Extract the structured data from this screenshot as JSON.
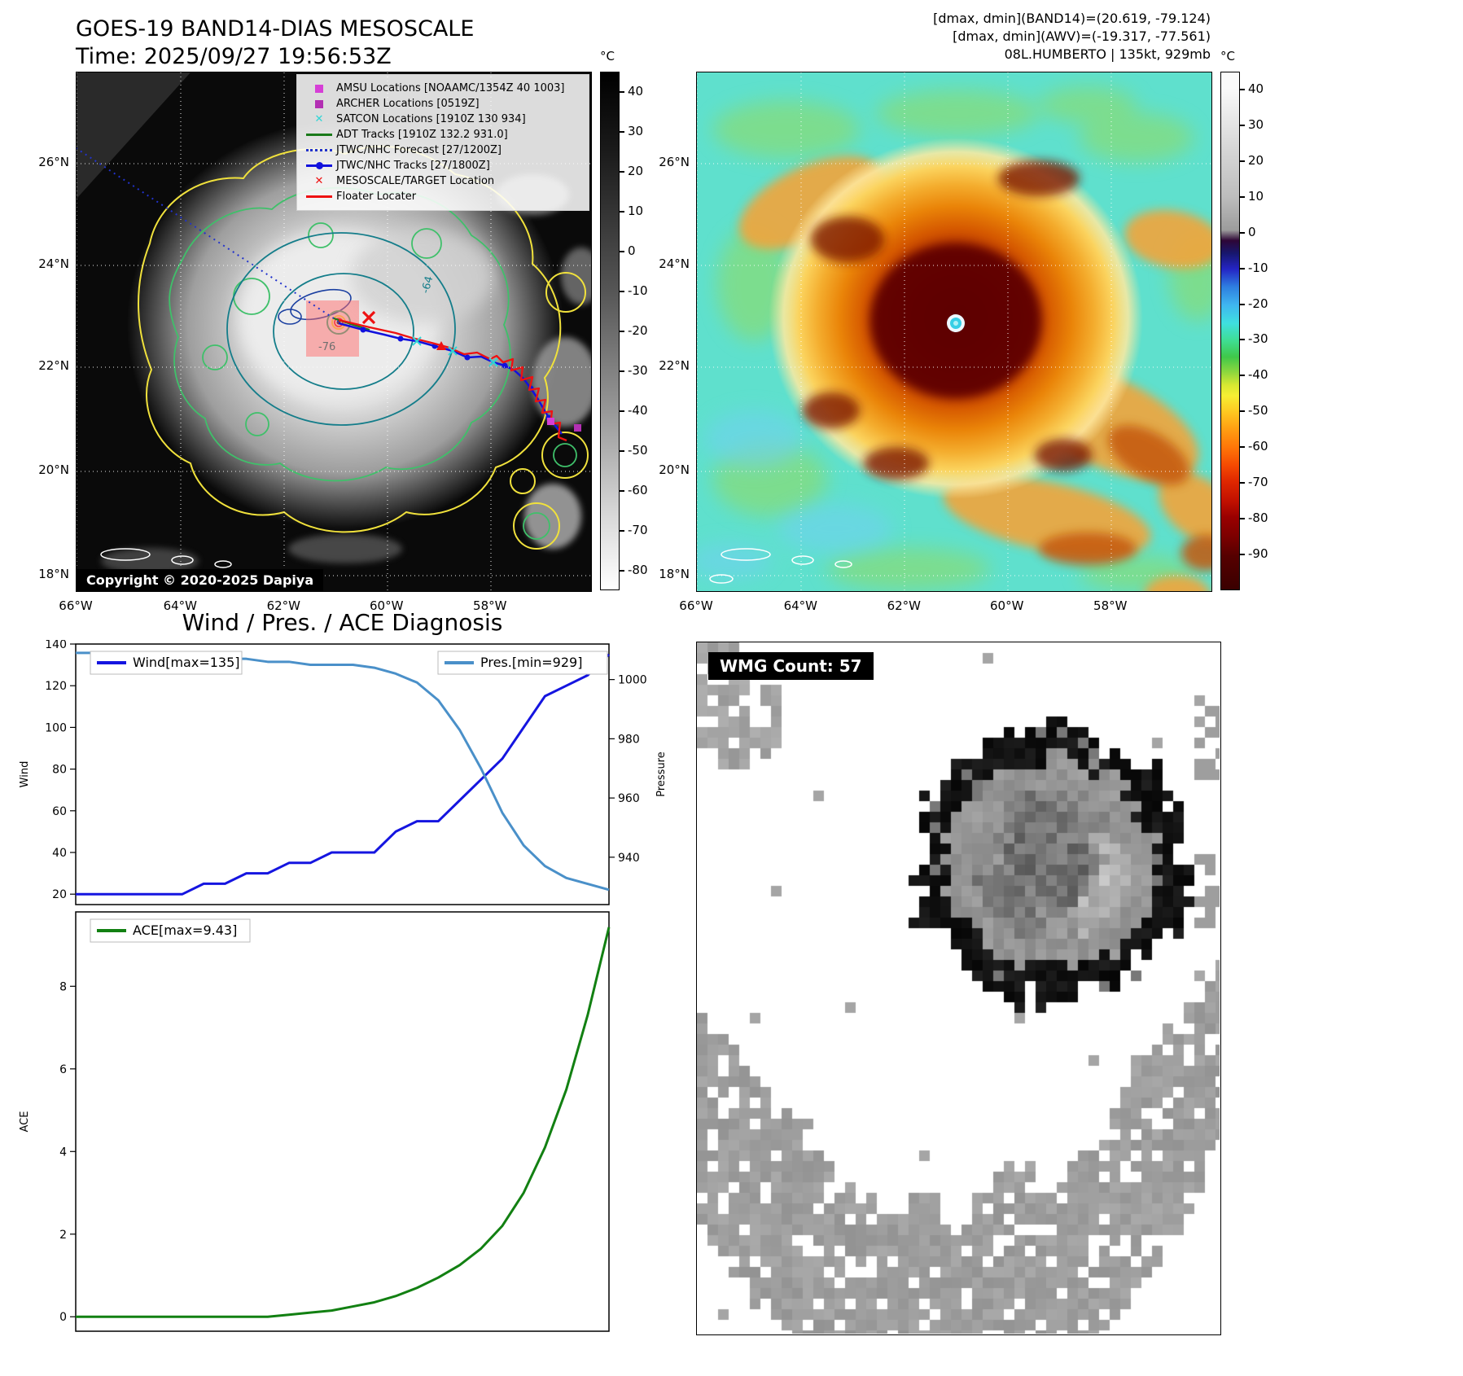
{
  "panel_tl": {
    "title": "GOES-19 BAND14-DIAS MESOSCALE",
    "subtitle": "Time: 2025/09/27 19:56:53Z",
    "copyright": "Copyright © 2020-2025 Dapiya",
    "contour_labels": {
      "inner": "-76",
      "outer": "-64"
    },
    "colorbar": {
      "unit": "°C",
      "ticks": [
        40,
        30,
        20,
        10,
        0,
        -10,
        -20,
        -30,
        -40,
        -50,
        -60,
        -70,
        -80
      ]
    },
    "lat_ticks": [
      "26°N",
      "24°N",
      "22°N",
      "20°N",
      "18°N"
    ],
    "lon_ticks": [
      "66°W",
      "64°W",
      "62°W",
      "60°W",
      "58°W"
    ],
    "legend": [
      {
        "label": "AMSU Locations [NOAAMC/1354Z 40 1003]",
        "marker": "square",
        "color": "#d63fd6"
      },
      {
        "label": "ARCHER Locations [0519Z]",
        "marker": "square",
        "color": "#b32fb3"
      },
      {
        "label": "SATCON Locations [1910Z 130 934]",
        "marker": "x",
        "color": "#2fd6d6"
      },
      {
        "label": "ADT Tracks [1910Z 132.2 931.0]",
        "marker": "line",
        "color": "#1a7a1a"
      },
      {
        "label": "JTWC/NHC Forecast [27/1200Z]",
        "marker": "dotted",
        "color": "#2233cc"
      },
      {
        "label": "JTWC/NHC Tracks [27/1800Z]",
        "marker": "line-dot",
        "color": "#1111dd"
      },
      {
        "label": "MESOSCALE/TARGET Location",
        "marker": "x",
        "color": "#ee1111"
      },
      {
        "label": "Floater Locater",
        "marker": "line",
        "color": "#ee1111"
      }
    ]
  },
  "panel_tr": {
    "header_lines": [
      "[dmax, dmin](BAND14)=(20.619, -79.124)",
      "[dmax, dmin](AWV)=(-19.317, -77.561)",
      "08L.HUMBERTO | 135kt, 929mb"
    ],
    "colorbar": {
      "unit": "°C",
      "ticks": [
        40,
        30,
        20,
        10,
        0,
        -10,
        -20,
        -30,
        -40,
        -50,
        -60,
        -70,
        -80,
        -90
      ]
    },
    "lat_ticks": [
      "26°N",
      "24°N",
      "22°N",
      "20°N",
      "18°N"
    ],
    "lon_ticks": [
      "66°W",
      "64°W",
      "62°W",
      "60°W",
      "58°W"
    ]
  },
  "panel_bl": {
    "title": "Wind / Pres. / ACE Diagnosis"
  },
  "panel_br": {
    "wmg_label": "WMG Count: 57"
  },
  "chart_data": [
    {
      "type": "line",
      "title": "Wind / Pres. / ACE Diagnosis",
      "x_is_time_steps": true,
      "series": [
        {
          "name": "Wind[max=135]",
          "axis": "left",
          "color": "#1515e0",
          "values": [
            20,
            20,
            20,
            20,
            20,
            20,
            25,
            25,
            30,
            30,
            35,
            35,
            40,
            40,
            40,
            50,
            55,
            55,
            65,
            75,
            85,
            100,
            115,
            120,
            125,
            135
          ]
        },
        {
          "name": "Pres.[min=929]",
          "axis": "right",
          "color": "#4a90c9",
          "values": [
            1009,
            1009,
            1009,
            1009,
            1008,
            1008,
            1008,
            1007,
            1007,
            1006,
            1006,
            1005,
            1005,
            1005,
            1004,
            1002,
            999,
            993,
            983,
            970,
            955,
            944,
            937,
            933,
            931,
            929
          ]
        }
      ],
      "ylabel_left": "Wind",
      "ylabel_right": "Pressure",
      "yticks_left": [
        20,
        40,
        60,
        80,
        100,
        120,
        140
      ],
      "ylim_left": [
        15,
        140
      ],
      "yticks_right": [
        940,
        960,
        980,
        1000
      ],
      "ylim_right": [
        924,
        1012
      ],
      "legend_position": {
        "wind": "top-left",
        "pres": "top-right"
      }
    },
    {
      "type": "line",
      "series": [
        {
          "name": "ACE[max=9.43]",
          "color": "#128012",
          "values": [
            0,
            0,
            0,
            0,
            0,
            0,
            0,
            0,
            0,
            0,
            0.05,
            0.1,
            0.15,
            0.25,
            0.35,
            0.5,
            0.7,
            0.95,
            1.25,
            1.65,
            2.2,
            3.0,
            4.1,
            5.5,
            7.3,
            9.43
          ]
        }
      ],
      "ylabel": "ACE",
      "yticks": [
        0,
        2,
        4,
        6,
        8
      ],
      "ylim": [
        -0.35,
        9.8
      ],
      "legend_position": "top-left"
    }
  ]
}
